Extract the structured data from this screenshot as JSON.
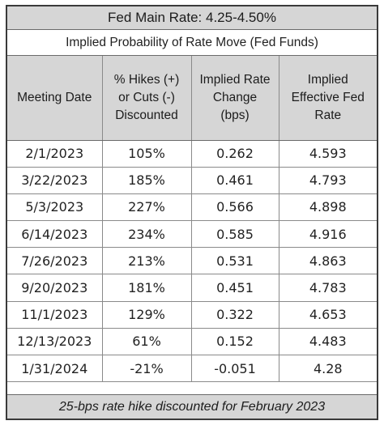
{
  "chart_data": {
    "type": "table",
    "title": "Fed Main Rate: 4.25-4.50%",
    "subtitle": "Implied Probability of Rate Move (Fed Funds)",
    "columns": [
      [
        "Meeting Date"
      ],
      [
        "% Hikes (+)",
        "or Cuts (-)",
        "Discounted"
      ],
      [
        "Implied Rate",
        "Change",
        "(bps)"
      ],
      [
        "Implied",
        "Effective Fed",
        "Rate"
      ]
    ],
    "rows": [
      [
        "2/1/2023",
        "105%",
        "0.262",
        "4.593"
      ],
      [
        "3/22/2023",
        "185%",
        "0.461",
        "4.793"
      ],
      [
        "5/3/2023",
        "227%",
        "0.566",
        "4.898"
      ],
      [
        "6/14/2023",
        "234%",
        "0.585",
        "4.916"
      ],
      [
        "7/26/2023",
        "213%",
        "0.531",
        "4.863"
      ],
      [
        "9/20/2023",
        "181%",
        "0.451",
        "4.783"
      ],
      [
        "11/1/2023",
        "129%",
        "0.322",
        "4.653"
      ],
      [
        "12/13/2023",
        "61%",
        "0.152",
        "4.483"
      ],
      [
        "1/31/2024",
        "-21%",
        "-0.051",
        "4.28"
      ]
    ],
    "footer": "25-bps rate hike discounted for February 2023"
  }
}
